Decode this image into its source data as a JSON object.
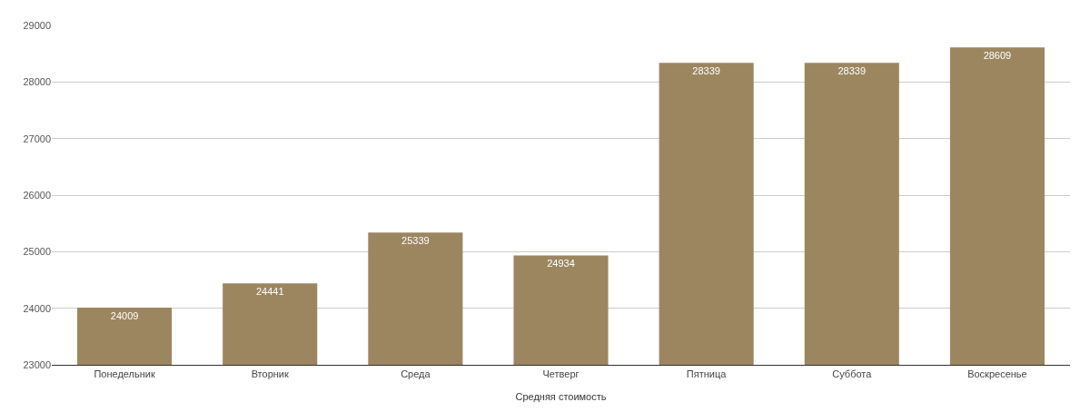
{
  "chart_data": {
    "type": "bar",
    "categories": [
      "Понедельник",
      "Вторник",
      "Среда",
      "Четверг",
      "Пятница",
      "Суббота",
      "Воскресенье"
    ],
    "values": [
      24009,
      24441,
      25339,
      24934,
      28339,
      28339,
      28609
    ],
    "color": "#9c8660",
    "xlabel": "Средняя стоимость",
    "ylim": [
      23000,
      29000
    ],
    "yticks": [
      23000,
      24000,
      25000,
      26000,
      27000,
      28000,
      29000
    ],
    "grid": "y",
    "data_labels": true,
    "legend": false
  }
}
